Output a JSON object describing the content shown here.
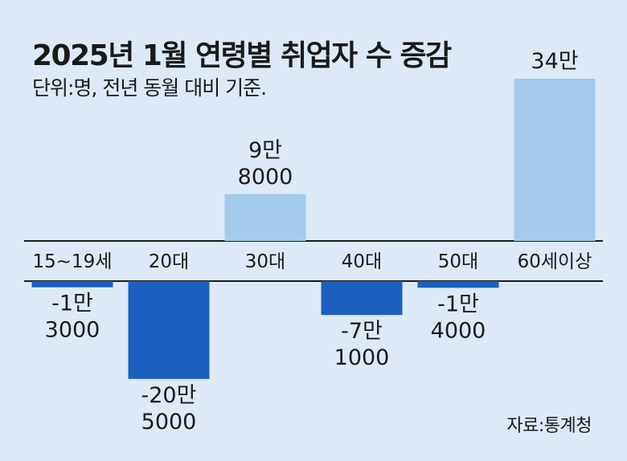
{
  "chart_data": {
    "type": "bar",
    "title": "2025년 1월 연령별 취업자 수 증감",
    "subtitle": "단위:명, 전년 동월 대비 기준.",
    "source": "자료:통계청",
    "categories": [
      "15~19세",
      "20대",
      "30대",
      "40대",
      "50대",
      "60세이상"
    ],
    "values": [
      -13000,
      -205000,
      98000,
      -71000,
      -14000,
      340000
    ],
    "value_labels": [
      [
        "-1만",
        "3000"
      ],
      [
        "-20만",
        "5000"
      ],
      [
        "9만",
        "8000"
      ],
      [
        "-7만",
        "1000"
      ],
      [
        "-1만",
        "4000"
      ],
      [
        "34만"
      ]
    ],
    "xlabel": "",
    "ylabel": "",
    "grid": false,
    "colors": {
      "positive": "#a3cbea",
      "negative": "#1b5fbf",
      "axis": "#1a1a1a",
      "background": "#dde9f7"
    }
  }
}
